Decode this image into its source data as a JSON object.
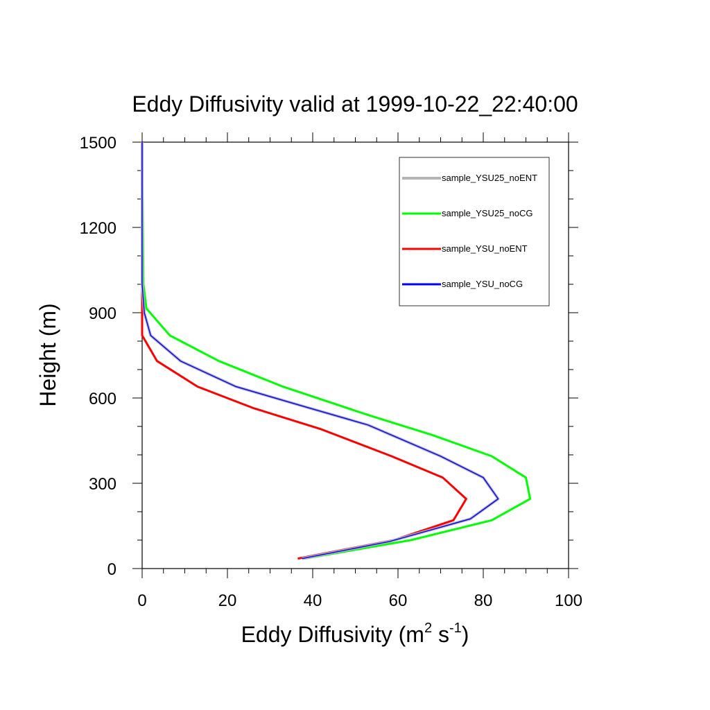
{
  "chart_data": {
    "type": "line",
    "title": "Eddy Diffusivity valid at 1999-10-22_22:40:00",
    "xlabel": {
      "base": "Eddy Diffusivity (m",
      "sup1": "2",
      "mid": " s",
      "sup2": "-1",
      "end": ")"
    },
    "ylabel": "Height (m)",
    "xlim": [
      0,
      100
    ],
    "ylim": [
      0,
      1500
    ],
    "x_ticks": [
      0,
      20,
      40,
      60,
      80,
      100
    ],
    "y_ticks": [
      0,
      300,
      600,
      900,
      1200,
      1500
    ],
    "x_tick_labels": [
      "0",
      "20",
      "40",
      "60",
      "80",
      "100"
    ],
    "y_tick_labels": [
      "0",
      "300",
      "600",
      "900",
      "1200",
      "1500"
    ],
    "legend_position": "top-right",
    "series": [
      {
        "name": "sample_YSU25_noENT",
        "color": "#b4b4b4",
        "points": [
          [
            37.5,
            35
          ],
          [
            58,
            95
          ],
          [
            77,
            175
          ],
          [
            83.5,
            245
          ],
          [
            80,
            320
          ],
          [
            70,
            395
          ],
          [
            53,
            505
          ],
          [
            38,
            570
          ],
          [
            22,
            640
          ],
          [
            9,
            730
          ],
          [
            2,
            820
          ],
          [
            0.5,
            900
          ],
          [
            0,
            1000
          ],
          [
            0,
            1500
          ]
        ]
      },
      {
        "name": "sample_YSU25_noCG",
        "color": "#00ff00",
        "points": [
          [
            38,
            35
          ],
          [
            63,
            100
          ],
          [
            82,
            170
          ],
          [
            91,
            245
          ],
          [
            90,
            320
          ],
          [
            82,
            395
          ],
          [
            68,
            470
          ],
          [
            53,
            540
          ],
          [
            33,
            640
          ],
          [
            18,
            730
          ],
          [
            6.5,
            820
          ],
          [
            1,
            915
          ],
          [
            0.3,
            1000
          ],
          [
            0,
            1500
          ]
        ]
      },
      {
        "name": "sample_YSU_noENT",
        "color": "#ff0000",
        "points": [
          [
            36.5,
            35
          ],
          [
            59,
            100
          ],
          [
            73,
            170
          ],
          [
            76,
            245
          ],
          [
            70.5,
            320
          ],
          [
            58.5,
            395
          ],
          [
            42,
            490
          ],
          [
            26,
            565
          ],
          [
            13,
            640
          ],
          [
            3.5,
            730
          ],
          [
            0,
            820
          ],
          [
            0,
            1500
          ]
        ]
      },
      {
        "name": "sample_YSU_noCG",
        "color": "#0000ff",
        "points": [
          [
            37.5,
            35
          ],
          [
            58,
            95
          ],
          [
            77,
            175
          ],
          [
            83.5,
            245
          ],
          [
            80,
            320
          ],
          [
            70,
            395
          ],
          [
            53,
            505
          ],
          [
            38,
            570
          ],
          [
            22,
            640
          ],
          [
            9,
            730
          ],
          [
            2,
            820
          ],
          [
            0.5,
            900
          ],
          [
            0,
            1000
          ],
          [
            0,
            1500
          ]
        ]
      }
    ]
  }
}
